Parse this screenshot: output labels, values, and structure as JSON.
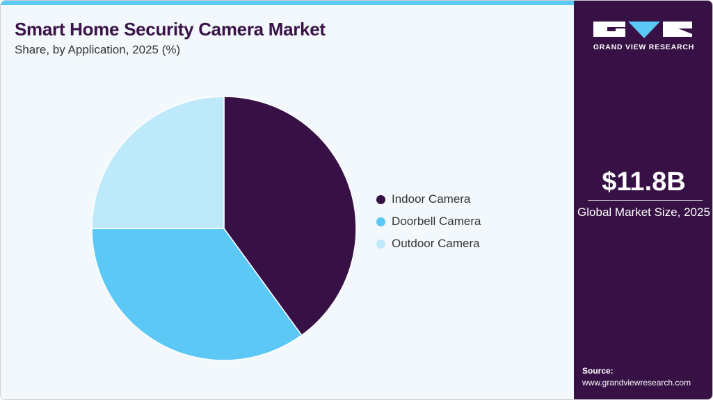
{
  "title": "Smart Home Security Camera Market",
  "subtitle": "Share, by Application, 2025 (%)",
  "chart_data": {
    "type": "pie",
    "categories": [
      "Indoor Camera",
      "Doorbell Camera",
      "Outdoor Camera"
    ],
    "values": [
      40,
      35,
      25
    ],
    "colors": [
      "#371045",
      "#5bc8f5",
      "#bde9fa"
    ],
    "start": "top",
    "direction": "clockwise",
    "legend": "right"
  },
  "side": {
    "logo_text": "GRAND VIEW RESEARCH",
    "market_size": "$11.8B",
    "market_label": "Global Market Size, 2025",
    "source_label": "Source:",
    "source_url": "www.grandviewresearch.com"
  }
}
